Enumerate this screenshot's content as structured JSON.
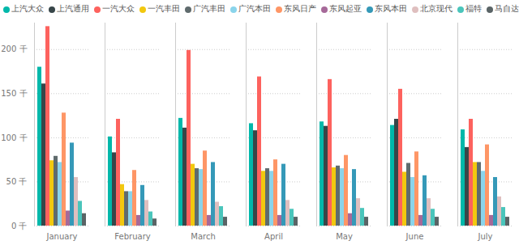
{
  "chart_data": {
    "type": "bar",
    "categories": [
      "January",
      "February",
      "March",
      "April",
      "May",
      "June",
      "July"
    ],
    "series": [
      {
        "name": "上汽大众",
        "color": "#01B8AA",
        "values": [
          180,
          101,
          122,
          116,
          118,
          114,
          109
        ]
      },
      {
        "name": "上汽通用",
        "color": "#374649",
        "values": [
          161,
          83,
          111,
          108,
          113,
          121,
          89
        ]
      },
      {
        "name": "一汽大众",
        "color": "#FD625E",
        "values": [
          226,
          121,
          199,
          169,
          166,
          155,
          121
        ]
      },
      {
        "name": "一汽丰田",
        "color": "#F2C80F",
        "values": [
          74,
          47,
          70,
          62,
          66,
          61,
          72
        ]
      },
      {
        "name": "广汽丰田",
        "color": "#5F6B6D",
        "values": [
          79,
          39,
          65,
          65,
          68,
          71,
          72
        ]
      },
      {
        "name": "广汽本田",
        "color": "#8AD4EB",
        "values": [
          72,
          39,
          64,
          62,
          65,
          55,
          62
        ]
      },
      {
        "name": "东风日产",
        "color": "#FE9666",
        "values": [
          128,
          63,
          85,
          75,
          80,
          84,
          92
        ]
      },
      {
        "name": "东风起亚",
        "color": "#A66999",
        "values": [
          17,
          12,
          12,
          12,
          14,
          12,
          12
        ]
      },
      {
        "name": "东风本田",
        "color": "#3599B8",
        "values": [
          94,
          46,
          72,
          70,
          64,
          57,
          55
        ]
      },
      {
        "name": "北京现代",
        "color": "#DFBFBF",
        "values": [
          55,
          29,
          27,
          29,
          31,
          31,
          33
        ]
      },
      {
        "name": "福特",
        "color": "#4AC5BB",
        "values": [
          28,
          16,
          22,
          19,
          20,
          19,
          21
        ]
      },
      {
        "name": "马自达",
        "color": "#5A6466",
        "values": [
          14,
          8,
          10,
          10,
          10,
          10,
          10
        ]
      }
    ],
    "ylim": [
      0,
      230
    ],
    "yticks": [
      {
        "value": 0,
        "label": "0 千"
      },
      {
        "value": 50,
        "label": "50 千"
      },
      {
        "value": 100,
        "label": "100 千"
      },
      {
        "value": 150,
        "label": "150 千"
      },
      {
        "value": 200,
        "label": "200 千"
      }
    ],
    "grid": true,
    "legend": "top"
  }
}
